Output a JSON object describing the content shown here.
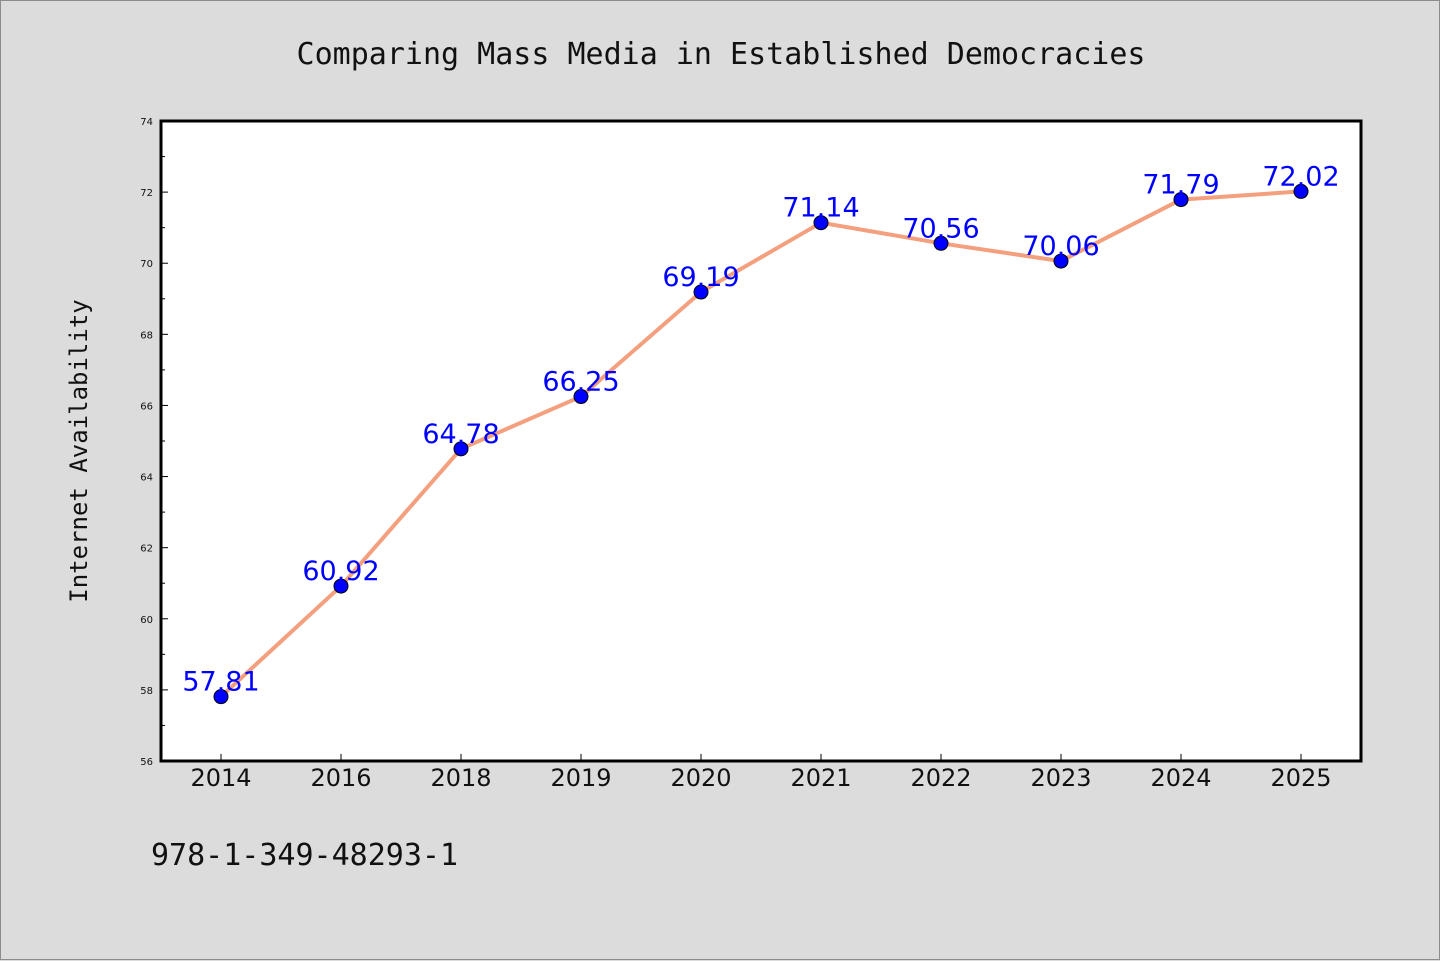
{
  "chart_data": {
    "type": "line",
    "title": "Comparing Mass Media in Established Democracies",
    "xlabel": "",
    "ylabel": "Internet Availability",
    "categories": [
      "2014",
      "2016",
      "2018",
      "2019",
      "2020",
      "2021",
      "2022",
      "2023",
      "2024",
      "2025"
    ],
    "series": [
      {
        "values": [
          57.81,
          60.92,
          64.78,
          66.25,
          69.19,
          71.14,
          70.56,
          70.06,
          71.79,
          72.02
        ],
        "line_color": "#f4a07e",
        "marker_color": "#0000ff"
      }
    ],
    "data_labels": [
      "57.81",
      "60.92",
      "64.78",
      "66.25",
      "69.19",
      "71.14",
      "70.56",
      "70.06",
      "71.79",
      "72.02"
    ],
    "ylim": [
      56,
      74
    ],
    "yticks": [
      56,
      58,
      60,
      62,
      64,
      66,
      68,
      70,
      72,
      74
    ],
    "grid": false,
    "legend": "none"
  },
  "footnote": "978-1-349-48293-1",
  "colors": {
    "background": "#dcdcdc",
    "plot_background": "#ffffff",
    "axis": "#000000",
    "data_label": "#0000ff"
  }
}
